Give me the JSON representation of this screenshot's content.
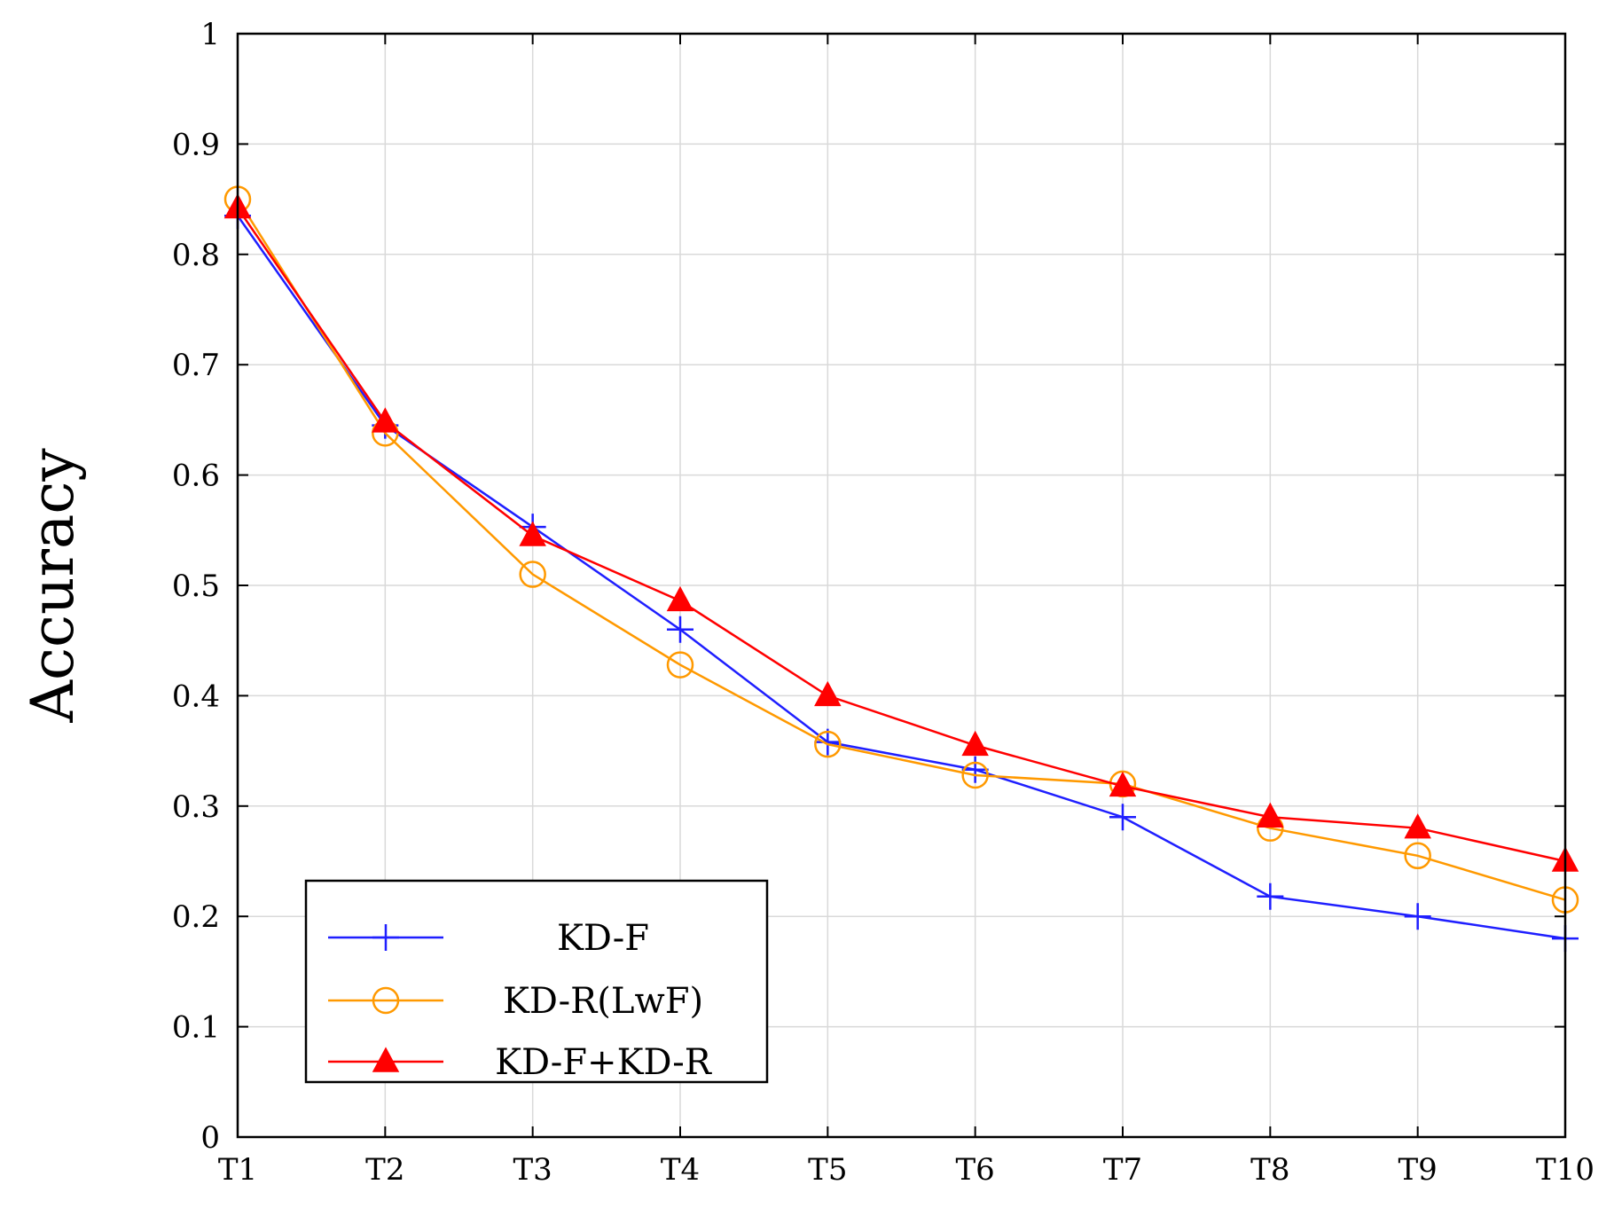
{
  "chart_data": {
    "type": "line",
    "title": "",
    "xlabel": "",
    "ylabel": "Accuracy",
    "categories": [
      "T1",
      "T2",
      "T3",
      "T4",
      "T5",
      "T6",
      "T7",
      "T8",
      "T9",
      "T10"
    ],
    "ylim": [
      0,
      1
    ],
    "yticks": [
      0,
      0.1,
      0.2,
      0.3,
      0.4,
      0.5,
      0.6,
      0.7,
      0.8,
      0.9,
      1
    ],
    "ytick_labels": [
      "0",
      "0.1",
      "0.2",
      "0.3",
      "0.4",
      "0.5",
      "0.6",
      "0.7",
      "0.8",
      "0.9",
      "1"
    ],
    "grid": true,
    "legend_position": "bottom-left",
    "series": [
      {
        "name": "KD-F",
        "color": "#1f1fff",
        "marker": "plus",
        "values": [
          0.835,
          0.645,
          0.553,
          0.46,
          0.358,
          0.333,
          0.29,
          0.218,
          0.2,
          0.18
        ]
      },
      {
        "name": "KD-R(LwF)",
        "color": "#ff9900",
        "marker": "circle",
        "values": [
          0.85,
          0.638,
          0.51,
          0.428,
          0.356,
          0.328,
          0.32,
          0.28,
          0.255,
          0.215
        ]
      },
      {
        "name": "KD-F+KD-R",
        "color": "#ff0000",
        "marker": "triangle",
        "values": [
          0.842,
          0.648,
          0.545,
          0.486,
          0.4,
          0.355,
          0.318,
          0.29,
          0.28,
          0.25
        ]
      }
    ]
  }
}
